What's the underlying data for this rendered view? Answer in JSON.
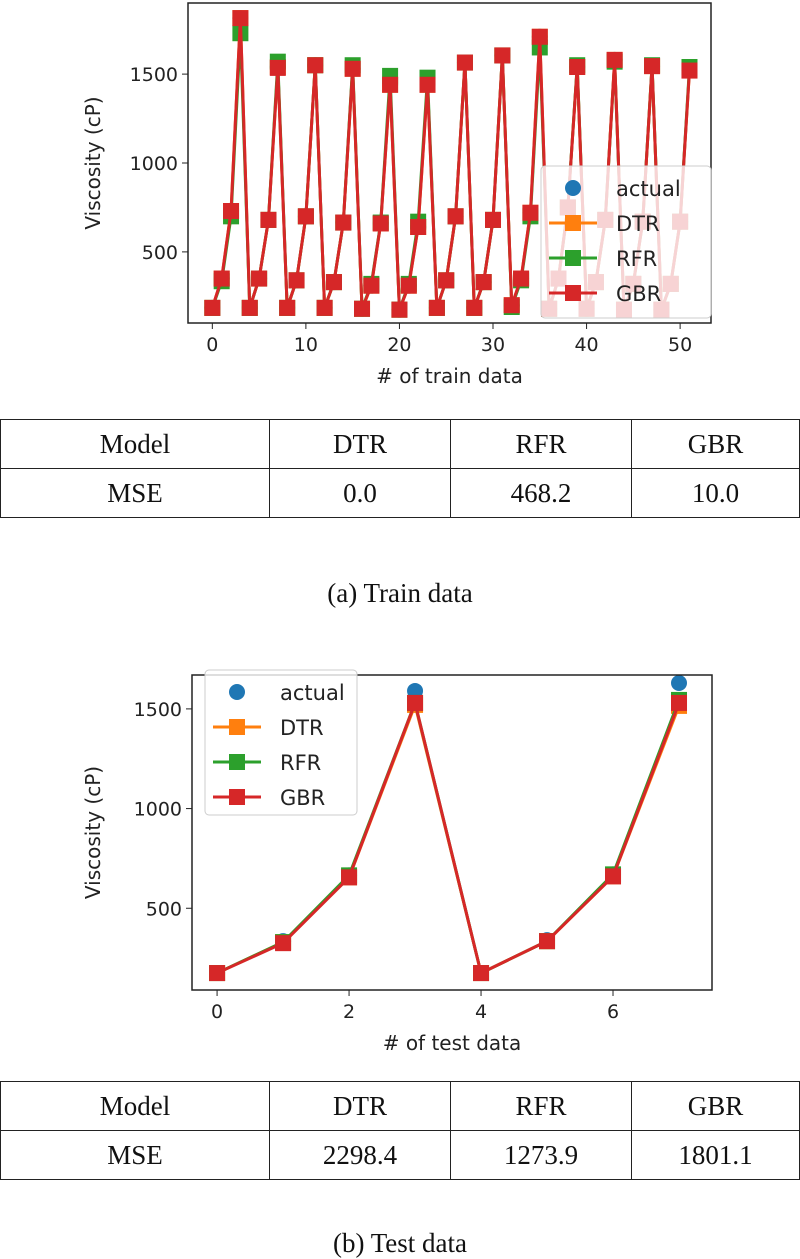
{
  "chart_data": [
    {
      "type": "line",
      "xlabel": "# of train data",
      "ylabel": "Viscosity (cP)",
      "xlim": [
        -2.6,
        53.3
      ],
      "ylim": [
        100,
        1900
      ],
      "xticks": [
        0,
        10,
        20,
        30,
        40,
        50
      ],
      "yticks": [
        500,
        1000,
        1500
      ],
      "legend": "right",
      "grid": false,
      "series": [
        {
          "name": "actual",
          "marker": "circle",
          "color": "#1f77b4",
          "line": false,
          "values": [
            185,
            350,
            730,
            1815,
            185,
            350,
            680,
            1540,
            185,
            340,
            700,
            1550,
            185,
            330,
            665,
            1530,
            180,
            310,
            660,
            1440,
            175,
            310,
            640,
            1440,
            185,
            340,
            700,
            1565,
            185,
            330,
            680,
            1605,
            200,
            350,
            720,
            1710,
            180,
            350,
            750,
            1540,
            180,
            330,
            680,
            1580,
            175,
            320,
            670,
            1545,
            175,
            320,
            670,
            1520
          ]
        },
        {
          "name": "DTR",
          "marker": "square",
          "color": "#ff7f0e",
          "values": [
            185,
            350,
            730,
            1815,
            185,
            350,
            680,
            1540,
            185,
            340,
            700,
            1550,
            185,
            330,
            665,
            1530,
            180,
            310,
            660,
            1440,
            175,
            310,
            640,
            1440,
            185,
            340,
            700,
            1565,
            185,
            330,
            680,
            1605,
            200,
            350,
            720,
            1710,
            180,
            350,
            750,
            1540,
            180,
            330,
            680,
            1580,
            175,
            320,
            670,
            1545,
            175,
            320,
            670,
            1520
          ]
        },
        {
          "name": "RFR",
          "marker": "square",
          "color": "#2ca02c",
          "values": [
            185,
            335,
            700,
            1730,
            185,
            350,
            680,
            1570,
            185,
            340,
            700,
            1550,
            185,
            330,
            665,
            1550,
            180,
            320,
            665,
            1490,
            175,
            320,
            670,
            1480,
            185,
            340,
            700,
            1565,
            185,
            330,
            680,
            1605,
            190,
            340,
            700,
            1650,
            180,
            350,
            750,
            1550,
            180,
            330,
            680,
            1570,
            175,
            320,
            670,
            1550,
            175,
            320,
            670,
            1540
          ]
        },
        {
          "name": "GBR",
          "marker": "square",
          "color": "#d62728",
          "values": [
            185,
            350,
            730,
            1815,
            185,
            350,
            680,
            1535,
            185,
            340,
            700,
            1550,
            185,
            330,
            665,
            1530,
            180,
            310,
            660,
            1440,
            175,
            310,
            640,
            1440,
            185,
            340,
            700,
            1565,
            185,
            330,
            680,
            1605,
            200,
            350,
            720,
            1710,
            180,
            350,
            750,
            1540,
            180,
            330,
            680,
            1580,
            175,
            320,
            670,
            1545,
            175,
            320,
            670,
            1520
          ]
        }
      ]
    },
    {
      "type": "line",
      "xlabel": "# of test data",
      "ylabel": "Viscosity (cP)",
      "xlim": [
        -0.38,
        7.5
      ],
      "ylim": [
        90,
        1670
      ],
      "xticks": [
        0,
        2,
        4,
        6
      ],
      "yticks": [
        500,
        1000,
        1500
      ],
      "legend": "upper left",
      "grid": false,
      "series": [
        {
          "name": "actual",
          "marker": "circle",
          "color": "#1f77b4",
          "line": false,
          "values": [
            175,
            335,
            665,
            1590,
            175,
            340,
            670,
            1630
          ]
        },
        {
          "name": "DTR",
          "marker": "square",
          "color": "#ff7f0e",
          "values": [
            175,
            330,
            655,
            1520,
            175,
            335,
            660,
            1515
          ]
        },
        {
          "name": "RFR",
          "marker": "square",
          "color": "#2ca02c",
          "values": [
            175,
            330,
            665,
            1530,
            175,
            335,
            670,
            1545
          ]
        },
        {
          "name": "GBR",
          "marker": "square",
          "color": "#d62728",
          "values": [
            175,
            325,
            655,
            1530,
            175,
            335,
            660,
            1530
          ]
        }
      ]
    }
  ],
  "train_table": {
    "header": [
      "Model",
      "DTR",
      "RFR",
      "GBR"
    ],
    "row": [
      "MSE",
      "0.0",
      "468.2",
      "10.0"
    ]
  },
  "train_caption": "(a) Train data",
  "test_table": {
    "header": [
      "Model",
      "DTR",
      "RFR",
      "GBR"
    ],
    "row": [
      "MSE",
      "2298.4",
      "1273.9",
      "1801.1"
    ]
  },
  "test_caption": "(b) Test data"
}
